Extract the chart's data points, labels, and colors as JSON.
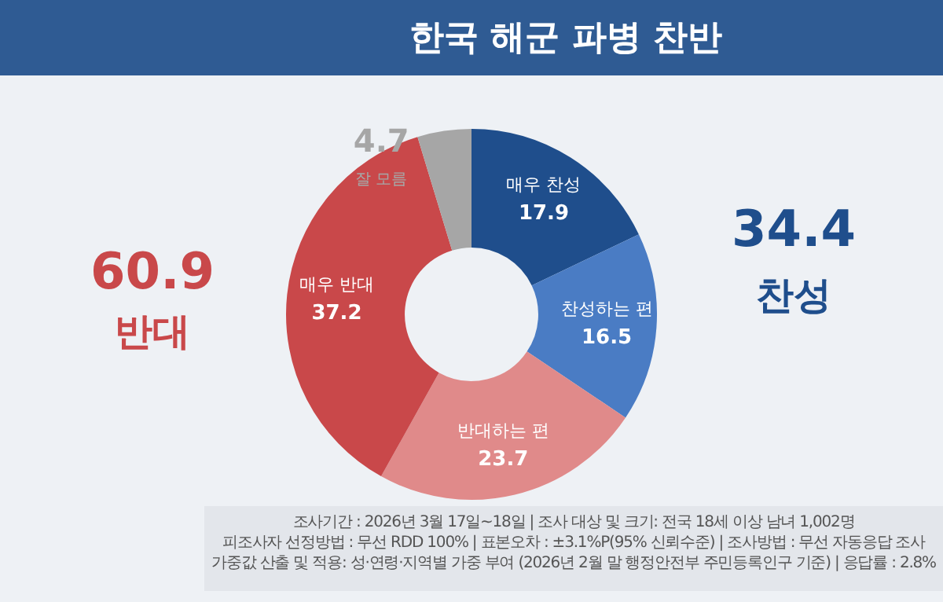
{
  "chart_data": {
    "type": "donut",
    "title": "한국 해군 파병 찬반",
    "categories": [
      "매우 찬성",
      "찬성하는 편",
      "반대하는 편",
      "매우 반대",
      "잘 모름"
    ],
    "values": [
      17.9,
      16.5,
      23.7,
      37.2,
      4.7
    ],
    "colors": [
      "#1f4e8c",
      "#4a7cc4",
      "#e08a8a",
      "#c9484a",
      "#a6a6a6"
    ],
    "data_labels": true,
    "legend": false,
    "annotations": [
      "34.4",
      "찬성",
      "60.9",
      "반대",
      "조사기간 : 2026년 3월 17일~18일 | 조사 대상 및 크기: 전국 18세 이상 남녀 1,002명",
      "피조사자 선정방법 : 무선 RDD 100% | 표본오차 : ±3.1%P(95% 신뢰수준) | 조사방법 : 무선 자동응답 조사",
      "가중값 산출 및 적용: 성·연령·지역별 가중 부여 (2026년 2월 말 행정안전부 주민등록인구 기준) | 응답률 : 2.8%"
    ]
  }
}
